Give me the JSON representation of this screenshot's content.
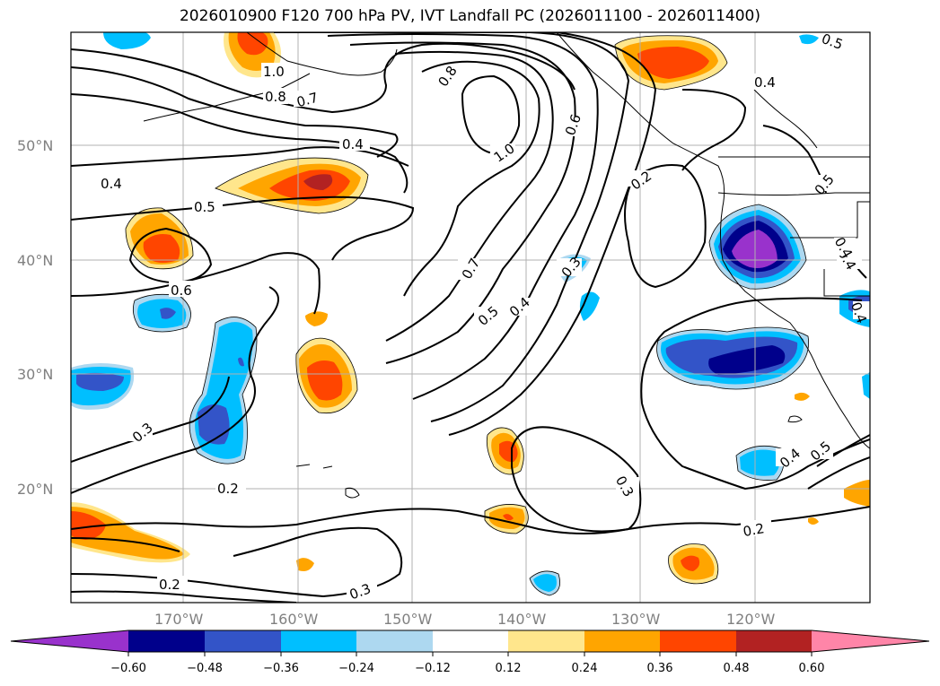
{
  "title": "2026010900 F120 700 hPa PV, IVT Landfall PC (2026011100 - 2026011400)",
  "latitude_labels": [
    "50°N",
    "40°N",
    "30°N",
    "20°N"
  ],
  "longitude_labels": [
    "170°W",
    "160°W",
    "150°W",
    "140°W",
    "130°W",
    "120°W"
  ],
  "contour_labels": [
    "0.4",
    "1.0",
    "0.8",
    "0.7",
    "0.8",
    "1.0",
    "0.6",
    "0.2",
    "0.4",
    "0.5",
    "0.4",
    "0.5",
    "0.6",
    "0.7",
    "0.5",
    "0.4",
    "0.3",
    "0.4",
    "0.4",
    "0.3",
    "0.2",
    "0.3",
    "0.2",
    "0.4",
    "0.5",
    "0.2",
    "0.3",
    "0.4",
    "0.5"
  ],
  "colorbar": {
    "ticks": [
      "−0.60",
      "−0.48",
      "−0.36",
      "−0.24",
      "−0.12",
      "0.12",
      "0.24",
      "0.36",
      "0.48",
      "0.60"
    ],
    "colors": [
      "#9932cc",
      "#00008b",
      "#3354c8",
      "#00bfff",
      "#add8f0",
      "#ffffff",
      "#ffe68c",
      "#ffa500",
      "#ff4500",
      "#b22222",
      "#ff85a8"
    ]
  }
}
